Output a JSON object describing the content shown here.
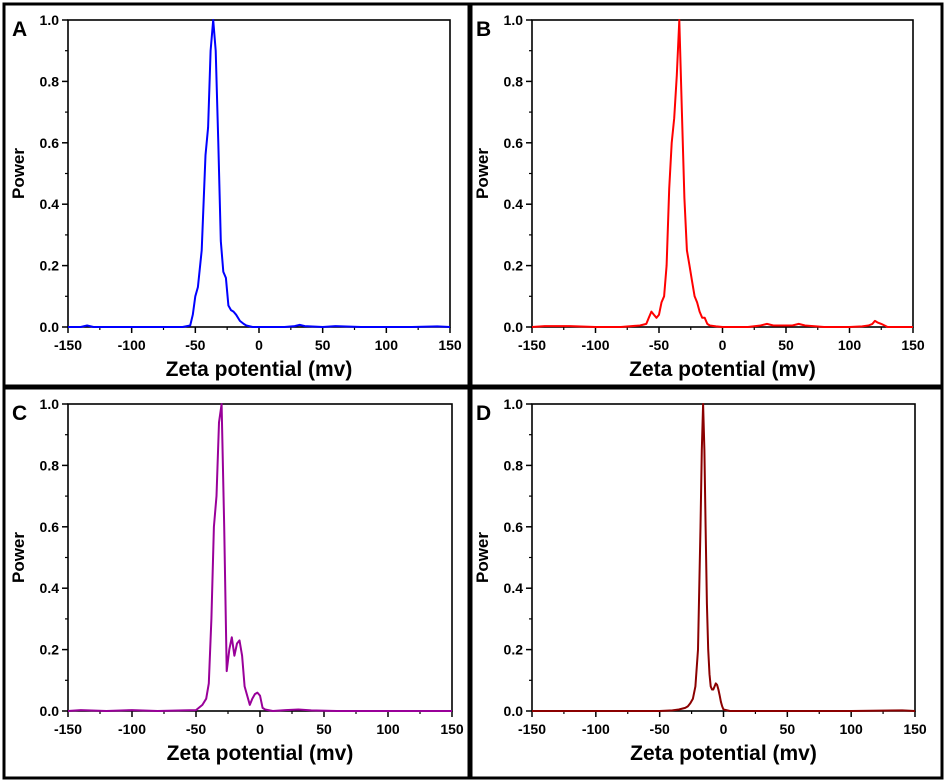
{
  "chart_data": [
    {
      "panel": "A",
      "type": "line",
      "xlabel": "Zeta potential (mv)",
      "ylabel": "Power",
      "xlim": [
        -150,
        150
      ],
      "ylim": [
        0,
        1.0
      ],
      "xticks": [
        "-150",
        "-100",
        "-50",
        "0",
        "50",
        "100",
        "150"
      ],
      "yticks": [
        "0.0",
        "0.2",
        "0.4",
        "0.6",
        "0.8",
        "1.0"
      ],
      "color": "#0000ff",
      "series": [
        {
          "name": "A",
          "x": [
            -150,
            -140,
            -135,
            -130,
            -100,
            -60,
            -54,
            -52,
            -50,
            -48,
            -45,
            -42,
            -40,
            -38,
            -36,
            -34,
            -32,
            -30,
            -28,
            -26,
            -24,
            -22,
            -20,
            -18,
            -15,
            -12,
            -10,
            -5,
            0,
            10,
            20,
            28,
            32,
            36,
            50,
            60,
            80,
            100,
            120,
            140,
            150
          ],
          "y": [
            0,
            0,
            0.005,
            0,
            0,
            0,
            0.005,
            0.04,
            0.1,
            0.13,
            0.25,
            0.56,
            0.65,
            0.9,
            1.0,
            0.9,
            0.6,
            0.28,
            0.18,
            0.16,
            0.07,
            0.055,
            0.05,
            0.04,
            0.02,
            0.01,
            0.005,
            0,
            0,
            0,
            0,
            0.003,
            0.007,
            0.003,
            0,
            0.003,
            0,
            0,
            0,
            0.002,
            0
          ]
        }
      ]
    },
    {
      "panel": "B",
      "type": "line",
      "xlabel": "Zeta potential (mv)",
      "ylabel": "Power",
      "xlim": [
        -150,
        150
      ],
      "ylim": [
        0,
        1.0
      ],
      "xticks": [
        "-150",
        "-100",
        "-50",
        "0",
        "50",
        "100",
        "150"
      ],
      "yticks": [
        "0.0",
        "0.2",
        "0.4",
        "0.6",
        "0.8",
        "1.0"
      ],
      "color": "#ff0000",
      "series": [
        {
          "name": "B",
          "x": [
            -150,
            -140,
            -120,
            -100,
            -80,
            -65,
            -60,
            -58,
            -56,
            -54,
            -52,
            -50,
            -48,
            -46,
            -44,
            -42,
            -40,
            -38,
            -36,
            -34,
            -32,
            -30,
            -28,
            -26,
            -24,
            -22,
            -20,
            -18,
            -16,
            -14,
            -12,
            -10,
            -5,
            0,
            10,
            20,
            30,
            35,
            40,
            55,
            60,
            65,
            80,
            100,
            110,
            115,
            118,
            120,
            122,
            125,
            130,
            150
          ],
          "y": [
            0,
            0.003,
            0.003,
            0,
            0,
            0.005,
            0.01,
            0.03,
            0.05,
            0.04,
            0.03,
            0.04,
            0.08,
            0.1,
            0.2,
            0.45,
            0.6,
            0.68,
            0.82,
            1.0,
            0.7,
            0.42,
            0.25,
            0.2,
            0.15,
            0.1,
            0.08,
            0.05,
            0.03,
            0.03,
            0.01,
            0.005,
            0.002,
            0,
            0,
            0,
            0.005,
            0.01,
            0.005,
            0.005,
            0.01,
            0.005,
            0,
            0,
            0.002,
            0.005,
            0.01,
            0.02,
            0.015,
            0.01,
            0,
            0
          ]
        }
      ]
    },
    {
      "panel": "C",
      "type": "line",
      "xlabel": "Zeta potential (mv)",
      "ylabel": "Power",
      "xlim": [
        -150,
        150
      ],
      "ylim": [
        0,
        1.0
      ],
      "xticks": [
        "-150",
        "-100",
        "-50",
        "0",
        "50",
        "100",
        "150"
      ],
      "yticks": [
        "0.0",
        "0.2",
        "0.4",
        "0.6",
        "0.8",
        "1.0"
      ],
      "color": "#990099",
      "series": [
        {
          "name": "C",
          "x": [
            -150,
            -140,
            -120,
            -100,
            -80,
            -60,
            -50,
            -45,
            -42,
            -40,
            -38,
            -36,
            -34,
            -32,
            -30,
            -28,
            -26,
            -24,
            -22,
            -20,
            -18,
            -16,
            -14,
            -12,
            -10,
            -8,
            -6,
            -4,
            -2,
            0,
            2,
            4,
            10,
            20,
            30,
            40,
            60,
            100,
            150
          ],
          "y": [
            0,
            0.003,
            0,
            0.003,
            0,
            0.002,
            0.003,
            0.02,
            0.04,
            0.09,
            0.3,
            0.6,
            0.7,
            0.94,
            1.0,
            0.6,
            0.13,
            0.2,
            0.24,
            0.18,
            0.22,
            0.23,
            0.18,
            0.08,
            0.05,
            0.02,
            0.04,
            0.055,
            0.06,
            0.05,
            0.01,
            0.005,
            0,
            0.003,
            0.005,
            0.002,
            0,
            0,
            0
          ]
        }
      ]
    },
    {
      "panel": "D",
      "type": "line",
      "xlabel": "Zeta potential (mv)",
      "ylabel": "Power",
      "xlim": [
        -150,
        150
      ],
      "ylim": [
        0,
        1.0
      ],
      "xticks": [
        "-150",
        "-100",
        "-50",
        "0",
        "50",
        "100",
        "150"
      ],
      "yticks": [
        "0.0",
        "0.2",
        "0.4",
        "0.6",
        "0.8",
        "1.0"
      ],
      "color": "#8b0000",
      "series": [
        {
          "name": "D",
          "x": [
            -150,
            -100,
            -50,
            -40,
            -35,
            -30,
            -28,
            -26,
            -24,
            -22,
            -20,
            -18,
            -17,
            -16,
            -15,
            -14,
            -13,
            -12,
            -11,
            -10,
            -9,
            -8,
            -7,
            -6,
            -5,
            -4,
            -3,
            -2,
            -1,
            0,
            5,
            10,
            20,
            40,
            60,
            100,
            140,
            150
          ],
          "y": [
            0,
            0,
            0,
            0.002,
            0.005,
            0.01,
            0.015,
            0.025,
            0.04,
            0.08,
            0.2,
            0.6,
            0.85,
            1.0,
            0.85,
            0.6,
            0.35,
            0.2,
            0.12,
            0.08,
            0.07,
            0.07,
            0.08,
            0.09,
            0.085,
            0.07,
            0.05,
            0.03,
            0.015,
            0.005,
            0,
            0,
            0,
            0,
            0,
            0,
            0.002,
            0
          ]
        }
      ]
    }
  ]
}
